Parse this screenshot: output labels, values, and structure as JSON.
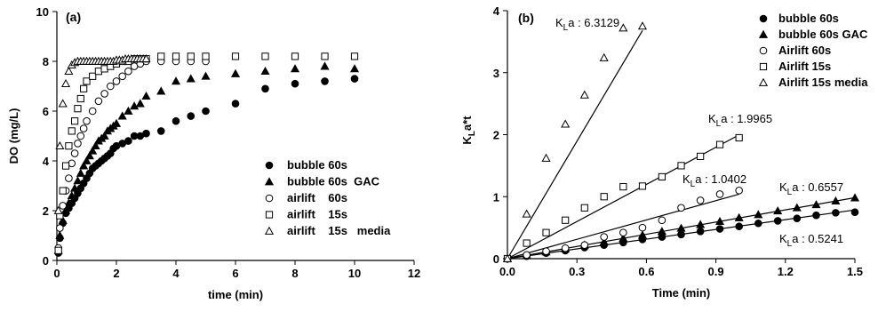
{
  "chart_data": [
    {
      "type": "scatter",
      "panel_label": "(a)",
      "xlabel": "time (min)",
      "ylabel": "DO (mg/L)",
      "xlim": [
        0,
        12
      ],
      "ylim": [
        0,
        10
      ],
      "xticks": [
        "0",
        "2",
        "4",
        "6",
        "8",
        "10",
        "12"
      ],
      "yticks": [
        "0",
        "2",
        "4",
        "6",
        "8",
        "10"
      ],
      "grid": false,
      "legend_position": "bottom-right",
      "series": [
        {
          "name": "bubble 60s",
          "marker": "circle-filled",
          "x": [
            0.05,
            0.1,
            0.2,
            0.3,
            0.4,
            0.5,
            0.6,
            0.7,
            0.8,
            0.9,
            1.0,
            1.1,
            1.2,
            1.3,
            1.4,
            1.5,
            1.6,
            1.7,
            1.8,
            1.9,
            2.0,
            2.2,
            2.4,
            2.6,
            2.8,
            3.0,
            3.5,
            4.0,
            4.5,
            5.0,
            6.0,
            7.0,
            8.0,
            9.0,
            10.0
          ],
          "y": [
            0.3,
            0.9,
            1.5,
            1.9,
            2.1,
            2.3,
            2.5,
            2.7,
            2.9,
            3.1,
            3.3,
            3.5,
            3.7,
            3.8,
            3.9,
            4.0,
            4.1,
            4.2,
            4.3,
            4.5,
            4.6,
            4.7,
            4.8,
            5.0,
            5.0,
            5.1,
            5.2,
            5.6,
            5.8,
            6.0,
            6.3,
            6.9,
            7.1,
            7.2,
            7.3
          ]
        },
        {
          "name": "bubble 60s  GAC",
          "marker": "triangle-filled",
          "x": [
            0.05,
            0.1,
            0.2,
            0.3,
            0.4,
            0.5,
            0.6,
            0.7,
            0.8,
            0.9,
            1.0,
            1.1,
            1.2,
            1.3,
            1.4,
            1.5,
            1.6,
            1.7,
            1.8,
            1.9,
            2.0,
            2.2,
            2.4,
            2.6,
            2.8,
            3.0,
            3.5,
            4.0,
            4.5,
            5.0,
            6.0,
            7.0,
            8.0,
            9.0,
            10.0
          ],
          "y": [
            0.4,
            1.0,
            1.6,
            2.0,
            2.3,
            2.6,
            2.9,
            3.2,
            3.5,
            3.8,
            4.0,
            4.2,
            4.4,
            4.6,
            4.8,
            4.9,
            5.0,
            5.2,
            5.3,
            5.4,
            5.5,
            5.8,
            6.0,
            6.2,
            6.3,
            6.6,
            6.8,
            7.2,
            7.3,
            7.4,
            7.5,
            7.6,
            7.7,
            7.8,
            7.7
          ]
        },
        {
          "name": "airlift    60s",
          "marker": "circle-open",
          "x": [
            0.05,
            0.1,
            0.2,
            0.3,
            0.4,
            0.5,
            0.6,
            0.7,
            0.8,
            0.9,
            1.0,
            1.2,
            1.4,
            1.6,
            1.8,
            2.0,
            2.2,
            2.4,
            2.6,
            2.8,
            3.0,
            3.5,
            4.0,
            4.5,
            5.0
          ],
          "y": [
            0.5,
            1.3,
            2.2,
            2.8,
            3.3,
            3.9,
            4.3,
            4.7,
            5.0,
            5.3,
            5.6,
            6.0,
            6.4,
            6.7,
            7.0,
            7.2,
            7.4,
            7.6,
            7.8,
            7.9,
            8.0,
            8.0,
            8.0,
            8.0,
            8.0
          ]
        },
        {
          "name": "airlift    15s",
          "marker": "square-open",
          "x": [
            0.05,
            0.1,
            0.2,
            0.3,
            0.4,
            0.5,
            0.6,
            0.7,
            0.8,
            0.9,
            1.0,
            1.2,
            1.4,
            1.6,
            1.8,
            2.0,
            2.2,
            2.4,
            2.6,
            2.8,
            3.0,
            3.5,
            4.0,
            4.5,
            5.0,
            6.0,
            7.0,
            8.0,
            9.0,
            10.0
          ],
          "y": [
            0.4,
            1.8,
            2.8,
            3.8,
            4.6,
            5.2,
            5.6,
            6.1,
            6.5,
            6.9,
            7.2,
            7.4,
            7.6,
            7.7,
            7.8,
            7.9,
            8.0,
            8.0,
            8.1,
            8.1,
            8.1,
            8.2,
            8.2,
            8.2,
            8.2,
            8.2,
            8.2,
            8.2,
            8.2,
            8.2
          ]
        },
        {
          "name": "airlift    15s   media",
          "marker": "triangle-open",
          "x": [
            0.05,
            0.1,
            0.2,
            0.3,
            0.4,
            0.5,
            0.6,
            0.7,
            0.8,
            0.9,
            1.0,
            1.1,
            1.2,
            1.3,
            1.4,
            1.5,
            1.6,
            1.7,
            1.8,
            1.9,
            2.0,
            2.1,
            2.2,
            2.3,
            2.4,
            2.5,
            2.6,
            2.7,
            2.8,
            2.9,
            3.0
          ],
          "y": [
            2.0,
            4.6,
            6.3,
            7.1,
            7.6,
            7.85,
            7.95,
            8.0,
            8.0,
            8.0,
            8.0,
            8.0,
            8.0,
            8.0,
            8.0,
            8.0,
            8.0,
            8.0,
            8.0,
            8.0,
            8.05,
            8.05,
            8.05,
            8.1,
            8.1,
            8.1,
            8.1,
            8.1,
            8.1,
            8.1,
            8.1
          ]
        }
      ]
    },
    {
      "type": "scatter",
      "panel_label": "(b)",
      "xlabel": "Time (min)",
      "ylabel_main": "K",
      "ylabel_sub": "L",
      "ylabel_rest": "a*t",
      "xlim": [
        0,
        1.5
      ],
      "ylim": [
        0,
        4
      ],
      "xticks": [
        "0.0",
        "0.3",
        "0.6",
        "0.9",
        "1.2",
        "1.5"
      ],
      "xtick_values": [
        0,
        0.3,
        0.6,
        0.9,
        1.2,
        1.5
      ],
      "yticks": [
        "0",
        "1",
        "2",
        "3",
        "4"
      ],
      "grid": false,
      "legend_position": "top-right",
      "series": [
        {
          "name": "bubble 60s",
          "marker": "circle-filled",
          "slope": 0.5241,
          "annotation_main": "K",
          "annotation_sub": "L",
          "annotation_rest": "a : 0.5241",
          "x": [
            0.083,
            0.167,
            0.25,
            0.333,
            0.417,
            0.5,
            0.583,
            0.667,
            0.75,
            0.833,
            0.917,
            1.0,
            1.083,
            1.167,
            1.25,
            1.333,
            1.417,
            1.5
          ],
          "y": [
            0.04,
            0.09,
            0.13,
            0.18,
            0.22,
            0.26,
            0.31,
            0.35,
            0.39,
            0.44,
            0.48,
            0.52,
            0.57,
            0.61,
            0.65,
            0.7,
            0.74,
            0.75
          ]
        },
        {
          "name": "bubble 60s GAC",
          "marker": "triangle-filled",
          "slope": 0.6557,
          "annotation_main": "K",
          "annotation_sub": "L",
          "annotation_rest": "a : 0.6557",
          "x": [
            0.083,
            0.167,
            0.25,
            0.333,
            0.417,
            0.5,
            0.583,
            0.667,
            0.75,
            0.833,
            0.917,
            1.0,
            1.083,
            1.167,
            1.25,
            1.333,
            1.417,
            1.5
          ],
          "y": [
            0.05,
            0.11,
            0.16,
            0.22,
            0.27,
            0.33,
            0.38,
            0.44,
            0.49,
            0.55,
            0.6,
            0.66,
            0.71,
            0.77,
            0.82,
            0.87,
            0.93,
            0.98
          ]
        },
        {
          "name": "Airlift 60s",
          "marker": "circle-open",
          "slope": 1.0402,
          "annotation_main": "K",
          "annotation_sub": "L",
          "annotation_rest": "a : 1.0402",
          "x": [
            0.083,
            0.167,
            0.25,
            0.333,
            0.417,
            0.5,
            0.583,
            0.667,
            0.75,
            0.833,
            0.917,
            1.0
          ],
          "y": [
            0.06,
            0.12,
            0.17,
            0.22,
            0.35,
            0.42,
            0.5,
            0.62,
            0.82,
            0.94,
            1.04,
            1.1
          ]
        },
        {
          "name": "Airlift 15s",
          "marker": "square-open",
          "slope": 1.9965,
          "annotation_main": "K",
          "annotation_sub": "L",
          "annotation_rest": "a : 1.9965",
          "x": [
            0.083,
            0.167,
            0.25,
            0.333,
            0.417,
            0.5,
            0.583,
            0.667,
            0.75,
            0.833,
            0.917,
            1.0
          ],
          "y": [
            0.25,
            0.42,
            0.62,
            0.82,
            1.0,
            1.16,
            1.17,
            1.32,
            1.5,
            1.65,
            1.84,
            1.95
          ]
        },
        {
          "name": "Airlift 15s media",
          "marker": "triangle-open",
          "slope": 6.3129,
          "annotation_main": "K",
          "annotation_sub": "L",
          "annotation_rest": "a : 6.3129",
          "x": [
            0.083,
            0.167,
            0.25,
            0.333,
            0.417,
            0.5,
            0.583
          ],
          "y": [
            0.72,
            1.62,
            2.17,
            2.64,
            3.24,
            3.72,
            3.75
          ]
        }
      ]
    }
  ]
}
